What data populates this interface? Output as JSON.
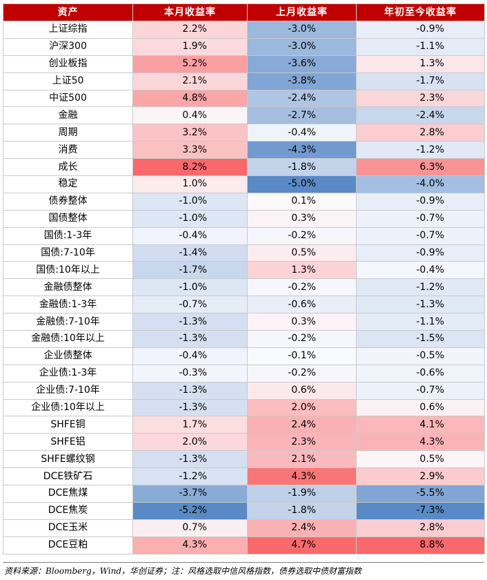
{
  "chart_data": {
    "type": "table",
    "columns": [
      "资产",
      "本月收益率",
      "上月收益率",
      "年初至今收益率"
    ],
    "rows": [
      {
        "asset": "上证综指",
        "values": [
          "2.2%",
          "-3.0%",
          "-0.9%"
        ]
      },
      {
        "asset": "沪深300",
        "values": [
          "1.9%",
          "-3.0%",
          "-1.1%"
        ]
      },
      {
        "asset": "创业板指",
        "values": [
          "5.2%",
          "-3.6%",
          "1.3%"
        ]
      },
      {
        "asset": "上证50",
        "values": [
          "2.1%",
          "-3.8%",
          "-1.7%"
        ]
      },
      {
        "asset": "中证500",
        "values": [
          "4.8%",
          "-2.4%",
          "2.3%"
        ]
      },
      {
        "asset": "金融",
        "values": [
          "0.4%",
          "-2.7%",
          "-2.4%"
        ]
      },
      {
        "asset": "周期",
        "values": [
          "3.2%",
          "-0.4%",
          "2.8%"
        ]
      },
      {
        "asset": "消费",
        "values": [
          "3.3%",
          "-4.3%",
          "-1.2%"
        ]
      },
      {
        "asset": "成长",
        "values": [
          "8.2%",
          "-1.8%",
          "6.3%"
        ]
      },
      {
        "asset": "稳定",
        "values": [
          "1.0%",
          "-5.0%",
          "-4.0%"
        ]
      },
      {
        "asset": "债券整体",
        "values": [
          "-1.0%",
          "0.1%",
          "-0.9%"
        ]
      },
      {
        "asset": "国债整体",
        "values": [
          "-1.0%",
          "0.3%",
          "-0.7%"
        ]
      },
      {
        "asset": "国债:1-3年",
        "values": [
          "-0.4%",
          "-0.2%",
          "-0.7%"
        ]
      },
      {
        "asset": "国债:7-10年",
        "values": [
          "-1.4%",
          "0.5%",
          "-0.9%"
        ]
      },
      {
        "asset": "国债:10年以上",
        "values": [
          "-1.7%",
          "1.3%",
          "-0.4%"
        ]
      },
      {
        "asset": "金融债整体",
        "values": [
          "-1.0%",
          "-0.2%",
          "-1.2%"
        ]
      },
      {
        "asset": "金融债:1-3年",
        "values": [
          "-0.7%",
          "-0.6%",
          "-1.3%"
        ]
      },
      {
        "asset": "金融债:7-10年",
        "values": [
          "-1.3%",
          "0.3%",
          "-1.1%"
        ]
      },
      {
        "asset": "金融债:10年以上",
        "values": [
          "-1.3%",
          "-0.2%",
          "-1.5%"
        ]
      },
      {
        "asset": "企业债整体",
        "values": [
          "-0.4%",
          "-0.1%",
          "-0.5%"
        ]
      },
      {
        "asset": "企业债:1-3年",
        "values": [
          "-0.3%",
          "-0.2%",
          "-0.6%"
        ]
      },
      {
        "asset": "企业债:7-10年",
        "values": [
          "-1.3%",
          "0.6%",
          "-0.7%"
        ]
      },
      {
        "asset": "企业债:10年以上",
        "values": [
          "-1.3%",
          "2.0%",
          "0.6%"
        ]
      },
      {
        "asset": "SHFE铜",
        "values": [
          "1.7%",
          "2.4%",
          "4.1%"
        ]
      },
      {
        "asset": "SHFE铝",
        "values": [
          "2.0%",
          "2.3%",
          "4.3%"
        ]
      },
      {
        "asset": "SHFE螺纹钢",
        "values": [
          "-1.3%",
          "2.1%",
          "0.5%"
        ]
      },
      {
        "asset": "DCE铁矿石",
        "values": [
          "-1.2%",
          "4.3%",
          "2.9%"
        ]
      },
      {
        "asset": "DCE焦煤",
        "values": [
          "-3.7%",
          "-1.9%",
          "-5.5%"
        ]
      },
      {
        "asset": "DCE焦炭",
        "values": [
          "-5.2%",
          "-1.8%",
          "-7.3%"
        ]
      },
      {
        "asset": "DCE玉米",
        "values": [
          "0.7%",
          "2.4%",
          "2.8%"
        ]
      },
      {
        "asset": "DCE豆粕",
        "values": [
          "4.3%",
          "4.7%",
          "8.8%"
        ]
      }
    ],
    "colors": {
      "header_bg": "#c00000",
      "header_text": "#ffffff",
      "positive_max": "#f8696b",
      "negative_max": "#5a8ac6",
      "neutral": "#fcfcff"
    }
  },
  "source_note": "资料来源：Bloomberg，Wind，华创证券；注：风格选取中信风格指数，债券选取中债财富指数"
}
